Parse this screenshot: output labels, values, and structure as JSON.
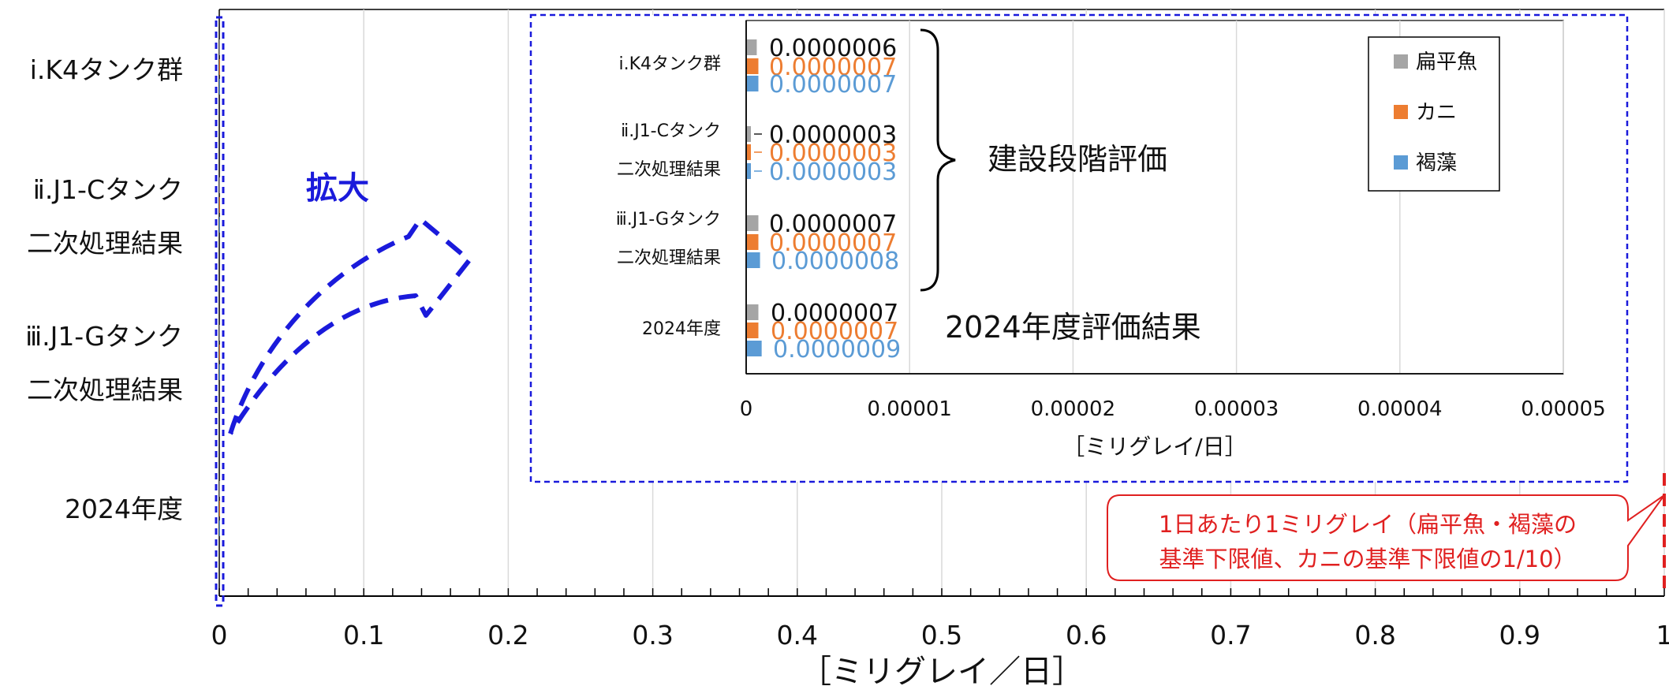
{
  "chart_data": [
    {
      "type": "bar",
      "orientation": "horizontal",
      "categories": [
        [
          "ⅰ.K4タンク群"
        ],
        [
          "ⅱ.J1-Cタンク",
          "二次処理結果"
        ],
        [
          "ⅲ.J1-Gタンク",
          "二次処理結果"
        ],
        [
          "2024年度"
        ]
      ],
      "series": [
        {
          "name": "扁平魚",
          "color": "#a5a5a5",
          "values": [
            6e-07,
            3e-07,
            7e-07,
            7e-07
          ]
        },
        {
          "name": "カニ",
          "color": "#ed7d31",
          "values": [
            7e-07,
            3e-07,
            7e-07,
            7e-07
          ]
        },
        {
          "name": "褐藻",
          "color": "#5b9bd5",
          "values": [
            7e-07,
            3e-07,
            8e-07,
            9e-07
          ]
        }
      ],
      "xlim": [
        0,
        1
      ],
      "x_ticks": [
        "0",
        "0.1",
        "0.2",
        "0.3",
        "0.4",
        "0.5",
        "0.6",
        "0.7",
        "0.8",
        "0.9",
        "1"
      ],
      "xlabel": "［ミリグレイ／日］",
      "grid": true,
      "reference_line": {
        "x": 1,
        "color": "#e02020",
        "label_lines": [
          "1日あたり1ミリグレイ（扁平魚・褐藻の",
          "基準下限値、カニの基準下限値の1/10）"
        ]
      },
      "annotation": {
        "text": "拡大",
        "color": "#1a1adb"
      }
    },
    {
      "type": "bar",
      "orientation": "horizontal",
      "role": "inset",
      "categories": [
        [
          "ⅰ.K4タンク群"
        ],
        [
          "ⅱ.J1-Cタンク",
          "二次処理結果"
        ],
        [
          "ⅲ.J1-Gタンク",
          "二次処理結果"
        ],
        [
          "2024年度"
        ]
      ],
      "series": [
        {
          "name": "扁平魚",
          "color": "#a5a5a5",
          "values": [
            6e-07,
            3e-07,
            7e-07,
            7e-07
          ],
          "data_labels": [
            "0.0000006",
            "0.0000003",
            "0.0000007",
            "0.0000007"
          ]
        },
        {
          "name": "カニ",
          "color": "#ed7d31",
          "values": [
            7e-07,
            3e-07,
            7e-07,
            7e-07
          ],
          "data_labels": [
            "0.0000007",
            "0.0000003",
            "0.0000007",
            "0.0000007"
          ]
        },
        {
          "name": "褐藻",
          "color": "#5b9bd5",
          "values": [
            7e-07,
            3e-07,
            8e-07,
            9e-07
          ],
          "data_labels": [
            "0.0000007",
            "0.0000003",
            "0.0000008",
            "0.0000009"
          ]
        }
      ],
      "xlim": [
        0,
        5e-05
      ],
      "x_ticks": [
        "0",
        "0.00001",
        "0.00002",
        "0.00003",
        "0.00004",
        "0.00005"
      ],
      "xlabel": "［ミリグレイ/日］",
      "grid": true,
      "legend": {
        "placement": "top-right",
        "entries": [
          "扁平魚",
          "カニ",
          "褐藻"
        ]
      },
      "annotations": {
        "bracket_label": "建設段階評価",
        "result_label": "2024年度評価結果"
      }
    }
  ]
}
